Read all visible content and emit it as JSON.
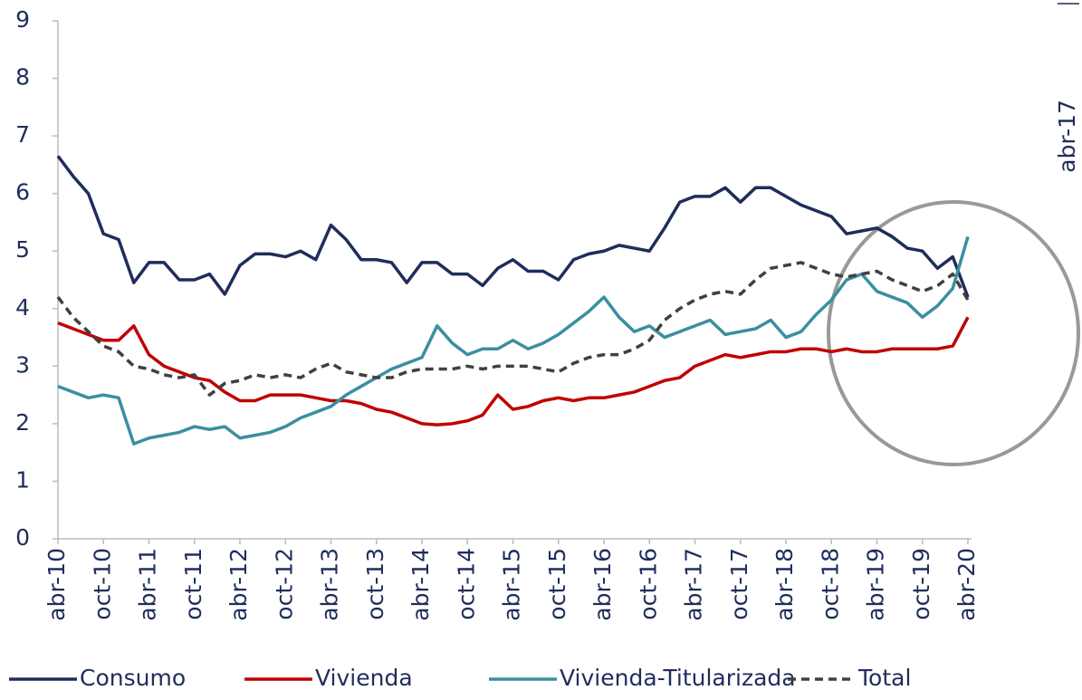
{
  "chart_data": {
    "type": "line",
    "annotations": [
      "abr-17"
    ],
    "categories": [
      "abr-10",
      null,
      null,
      "oct-10",
      null,
      null,
      "abr-11",
      null,
      null,
      "oct-11",
      null,
      null,
      "abr-12",
      null,
      null,
      "oct-12",
      null,
      null,
      "abr-13",
      null,
      null,
      "oct-13",
      null,
      null,
      "abr-14",
      null,
      null,
      "oct-14",
      null,
      null,
      "abr-15",
      null,
      null,
      "oct-15",
      null,
      null,
      "abr-16",
      null,
      null,
      "oct-16",
      null,
      null,
      "abr-17",
      null,
      null,
      "oct-17",
      null,
      null,
      "abr-18",
      null,
      null,
      "oct-18",
      null,
      null,
      "abr-19",
      null,
      null,
      "oct-19",
      null,
      null,
      "abr-20"
    ],
    "series": [
      {
        "name": "Consumo",
        "color": "#1f2d5c",
        "dash": "solid",
        "values": [
          6.65,
          6.3,
          6.0,
          5.3,
          5.2,
          4.45,
          4.8,
          4.8,
          4.5,
          4.5,
          4.6,
          4.25,
          4.75,
          4.95,
          4.95,
          4.9,
          5.0,
          4.85,
          5.45,
          5.2,
          4.85,
          4.85,
          4.8,
          4.45,
          4.8,
          4.8,
          4.6,
          4.6,
          4.4,
          4.7,
          4.85,
          4.65,
          4.65,
          4.5,
          4.85,
          4.95,
          5.0,
          5.1,
          5.05,
          5.0,
          5.4,
          5.85,
          5.95,
          5.95,
          6.1,
          5.85,
          6.1,
          6.1,
          5.95,
          5.8,
          5.7,
          5.6,
          5.3,
          5.35,
          5.4,
          5.25,
          5.05,
          5.0,
          4.7,
          4.9,
          4.2
        ]
      },
      {
        "name": "Vivienda",
        "color": "#c00000",
        "dash": "solid",
        "values": [
          3.75,
          3.65,
          3.55,
          3.45,
          3.45,
          3.7,
          3.2,
          3.0,
          2.9,
          2.8,
          2.75,
          2.55,
          2.4,
          2.4,
          2.5,
          2.5,
          2.5,
          2.45,
          2.4,
          2.4,
          2.35,
          2.25,
          2.2,
          2.1,
          2.0,
          1.98,
          2.0,
          2.05,
          2.15,
          2.5,
          2.25,
          2.3,
          2.4,
          2.45,
          2.4,
          2.45,
          2.45,
          2.5,
          2.55,
          2.65,
          2.75,
          2.8,
          3.0,
          3.1,
          3.2,
          3.15,
          3.2,
          3.25,
          3.25,
          3.3,
          3.3,
          3.25,
          3.3,
          3.25,
          3.25,
          3.3,
          3.3,
          3.3,
          3.3,
          3.35,
          3.85
        ]
      },
      {
        "name": "Vivienda-Titularizada",
        "color": "#3a8fa0",
        "dash": "solid",
        "values": [
          2.65,
          2.55,
          2.45,
          2.5,
          2.45,
          1.65,
          1.75,
          1.8,
          1.85,
          1.95,
          1.9,
          1.95,
          1.75,
          1.8,
          1.85,
          1.95,
          2.1,
          2.2,
          2.3,
          2.5,
          2.65,
          2.8,
          2.95,
          3.05,
          3.15,
          3.7,
          3.4,
          3.2,
          3.3,
          3.3,
          3.45,
          3.3,
          3.4,
          3.55,
          3.75,
          3.95,
          4.2,
          3.85,
          3.6,
          3.7,
          3.5,
          3.6,
          3.7,
          3.8,
          3.55,
          3.6,
          3.65,
          3.8,
          3.5,
          3.6,
          3.9,
          4.15,
          4.5,
          4.6,
          4.3,
          4.2,
          4.1,
          3.85,
          4.05,
          4.35,
          5.25
        ]
      },
      {
        "name": "Total",
        "color": "#404040",
        "dash": "dashed",
        "values": [
          4.2,
          3.85,
          3.6,
          3.35,
          3.25,
          3.0,
          2.95,
          2.85,
          2.8,
          2.85,
          2.5,
          2.7,
          2.75,
          2.85,
          2.8,
          2.85,
          2.8,
          2.95,
          3.05,
          2.9,
          2.85,
          2.8,
          2.8,
          2.9,
          2.95,
          2.95,
          2.95,
          3.0,
          2.95,
          3.0,
          3.0,
          3.0,
          2.95,
          2.9,
          3.05,
          3.15,
          3.2,
          3.2,
          3.3,
          3.45,
          3.8,
          4.0,
          4.15,
          4.25,
          4.3,
          4.25,
          4.5,
          4.7,
          4.75,
          4.8,
          4.7,
          4.6,
          4.55,
          4.6,
          4.65,
          4.5,
          4.4,
          4.3,
          4.4,
          4.6,
          4.15
        ]
      }
    ],
    "ylim": [
      0,
      9
    ],
    "yticks": [
      0,
      1,
      2,
      3,
      4,
      5,
      6,
      7,
      8,
      9
    ],
    "grid": false,
    "legend": "bottom"
  }
}
